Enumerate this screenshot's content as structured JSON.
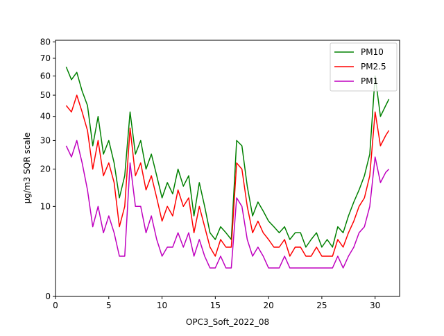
{
  "chart_data": {
    "type": "line",
    "title": "",
    "xlabel": "OPC3_Soft_2022_08",
    "ylabel": "µg/m3 SQR scale",
    "y_scale": "sqrt",
    "xlim": [
      0,
      32.3
    ],
    "ylim": [
      0,
      81
    ],
    "x_ticks": [
      0,
      5,
      10,
      15,
      20,
      25,
      30
    ],
    "x_tick_labels": [
      "0",
      "5",
      "10",
      "15",
      "20",
      "25",
      "30"
    ],
    "y_ticks": [
      0,
      10,
      20,
      30,
      40,
      50,
      60,
      70,
      80
    ],
    "y_tick_labels": [
      "0",
      "10",
      "20",
      "30",
      "40",
      "50",
      "60",
      "70",
      "80"
    ],
    "grid": false,
    "legend_position": "top-right",
    "series": [
      {
        "name": "PM10",
        "color": "#008000",
        "x": [
          1.0,
          1.5,
          2.0,
          2.5,
          3.0,
          3.5,
          4.0,
          4.5,
          5.0,
          5.5,
          6.0,
          6.5,
          7.0,
          7.5,
          8.0,
          8.5,
          9.0,
          9.5,
          10.0,
          10.5,
          11.0,
          11.5,
          12.0,
          12.5,
          13.0,
          13.5,
          14.0,
          14.5,
          15.0,
          15.5,
          16.0,
          16.5,
          17.0,
          17.5,
          18.0,
          18.5,
          19.0,
          19.5,
          20.0,
          20.5,
          21.0,
          21.5,
          22.0,
          22.5,
          23.0,
          23.5,
          24.0,
          24.5,
          25.0,
          25.5,
          26.0,
          26.5,
          27.0,
          27.5,
          28.0,
          28.5,
          29.0,
          29.5,
          30.0,
          30.5,
          31.0,
          31.3
        ],
        "values": [
          65,
          58,
          62,
          52,
          45,
          28,
          40,
          25,
          30,
          22,
          12,
          18,
          42,
          25,
          30,
          20,
          25,
          18,
          12,
          16,
          13,
          20,
          15,
          18,
          8,
          16,
          10,
          5,
          4,
          6,
          5,
          4,
          30,
          28,
          15,
          8,
          11,
          9,
          7,
          6,
          5,
          6,
          4,
          5,
          5,
          3,
          4,
          5,
          3,
          4,
          3,
          6,
          5,
          8,
          11,
          14,
          18,
          25,
          60,
          40,
          45,
          48
        ]
      },
      {
        "name": "PM2.5",
        "color": "#ff0000",
        "x": [
          1.0,
          1.5,
          2.0,
          2.5,
          3.0,
          3.5,
          4.0,
          4.5,
          5.0,
          5.5,
          6.0,
          6.5,
          7.0,
          7.5,
          8.0,
          8.5,
          9.0,
          9.5,
          10.0,
          10.5,
          11.0,
          11.5,
          12.0,
          12.5,
          13.0,
          13.5,
          14.0,
          14.5,
          15.0,
          15.5,
          16.0,
          16.5,
          17.0,
          17.5,
          18.0,
          18.5,
          19.0,
          19.5,
          20.0,
          20.5,
          21.0,
          21.5,
          22.0,
          22.5,
          23.0,
          23.5,
          24.0,
          24.5,
          25.0,
          25.5,
          26.0,
          26.5,
          27.0,
          27.5,
          28.0,
          28.5,
          29.0,
          29.5,
          30.0,
          30.5,
          31.0,
          31.3
        ],
        "values": [
          45,
          42,
          50,
          42,
          34,
          20,
          30,
          18,
          22,
          16,
          6,
          10,
          35,
          18,
          22,
          14,
          18,
          12,
          7,
          10,
          8,
          14,
          10,
          12,
          5,
          10,
          6,
          3,
          2,
          4,
          3,
          3,
          22,
          20,
          10,
          5,
          7,
          5,
          4,
          3,
          3,
          4,
          2,
          3,
          3,
          2,
          2,
          3,
          2,
          2,
          2,
          4,
          3,
          5,
          7,
          10,
          12,
          18,
          42,
          28,
          32,
          34
        ]
      },
      {
        "name": "PM1",
        "color": "#bf00bf",
        "x": [
          1.0,
          1.5,
          2.0,
          2.5,
          3.0,
          3.5,
          4.0,
          4.5,
          5.0,
          5.5,
          6.0,
          6.5,
          7.0,
          7.5,
          8.0,
          8.5,
          9.0,
          9.5,
          10.0,
          10.5,
          11.0,
          11.5,
          12.0,
          12.5,
          13.0,
          13.5,
          14.0,
          14.5,
          15.0,
          15.5,
          16.0,
          16.5,
          17.0,
          17.5,
          18.0,
          18.5,
          19.0,
          19.5,
          20.0,
          20.5,
          21.0,
          21.5,
          22.0,
          22.5,
          23.0,
          23.5,
          24.0,
          24.5,
          25.0,
          25.5,
          26.0,
          26.5,
          27.0,
          27.5,
          28.0,
          28.5,
          29.0,
          29.5,
          30.0,
          30.5,
          31.0,
          31.3
        ],
        "values": [
          28,
          24,
          30,
          22,
          14,
          6,
          10,
          5,
          8,
          5,
          2,
          2,
          22,
          10,
          10,
          5,
          8,
          4,
          2,
          3,
          3,
          5,
          3,
          5,
          2,
          4,
          2,
          1,
          1,
          2,
          1,
          1,
          12,
          10,
          4,
          2,
          3,
          2,
          1,
          1,
          1,
          2,
          1,
          1,
          1,
          1,
          1,
          1,
          1,
          1,
          1,
          2,
          1,
          2,
          3,
          5,
          6,
          10,
          24,
          16,
          19,
          20
        ]
      }
    ]
  }
}
